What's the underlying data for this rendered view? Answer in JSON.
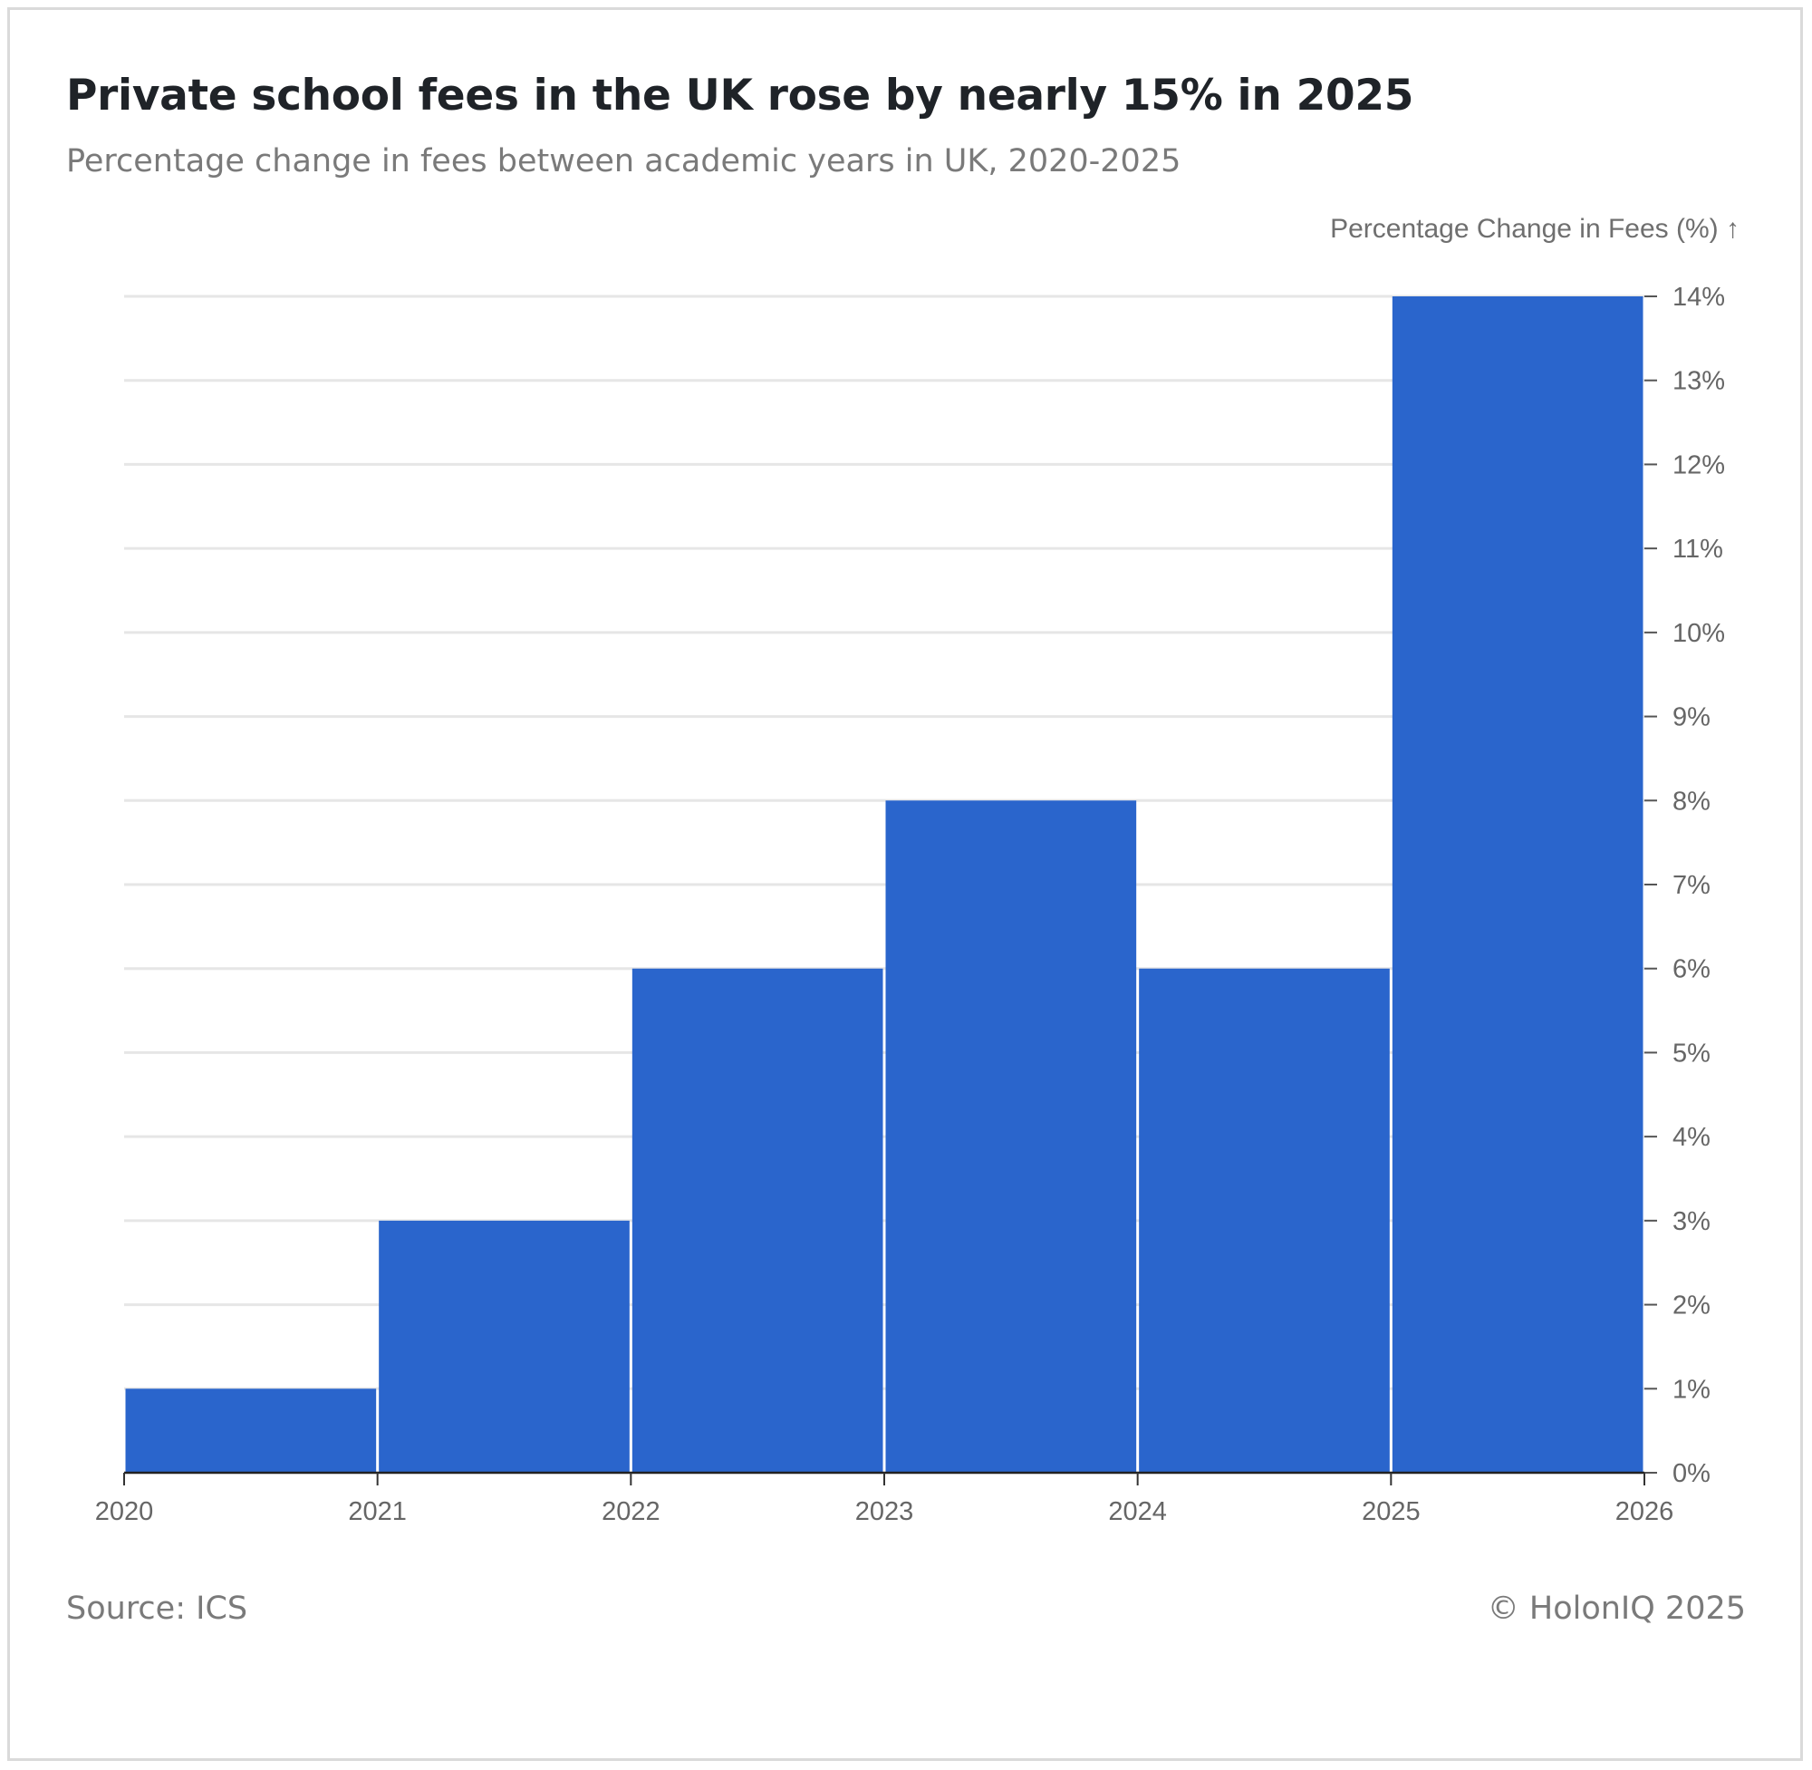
{
  "title": "Private school fees in the UK rose by nearly 15% in 2025",
  "subtitle": "Percentage change in fees between academic years in UK, 2020-2025",
  "source": "Source: ICS",
  "credit": "© HolonIQ 2025",
  "chart_data": {
    "type": "bar",
    "title": "Private school fees in the UK rose by nearly 15% in 2025",
    "subtitle": "Percentage change in fees between academic years in UK, 2020-2025",
    "xlabel": "",
    "ylabel": "Percentage Change in Fees (%) ↑",
    "bins": [
      {
        "start": 2020,
        "end": 2021,
        "value": 1
      },
      {
        "start": 2021,
        "end": 2022,
        "value": 3
      },
      {
        "start": 2022,
        "end": 2023,
        "value": 6
      },
      {
        "start": 2023,
        "end": 2024,
        "value": 8
      },
      {
        "start": 2024,
        "end": 2025,
        "value": 6
      },
      {
        "start": 2025,
        "end": 2026,
        "value": 14
      }
    ],
    "xticks": [
      "2020",
      "2021",
      "2022",
      "2023",
      "2024",
      "2025",
      "2026"
    ],
    "yticks": [
      "0%",
      "1%",
      "2%",
      "3%",
      "4%",
      "5%",
      "6%",
      "7%",
      "8%",
      "9%",
      "10%",
      "11%",
      "12%",
      "13%",
      "14%"
    ],
    "xlim": [
      2020,
      2026
    ],
    "ylim": [
      0,
      14
    ],
    "y_axis_side": "right",
    "grid": true,
    "bar_color": "#2a65cc",
    "grid_color": "#e6e6e6"
  }
}
